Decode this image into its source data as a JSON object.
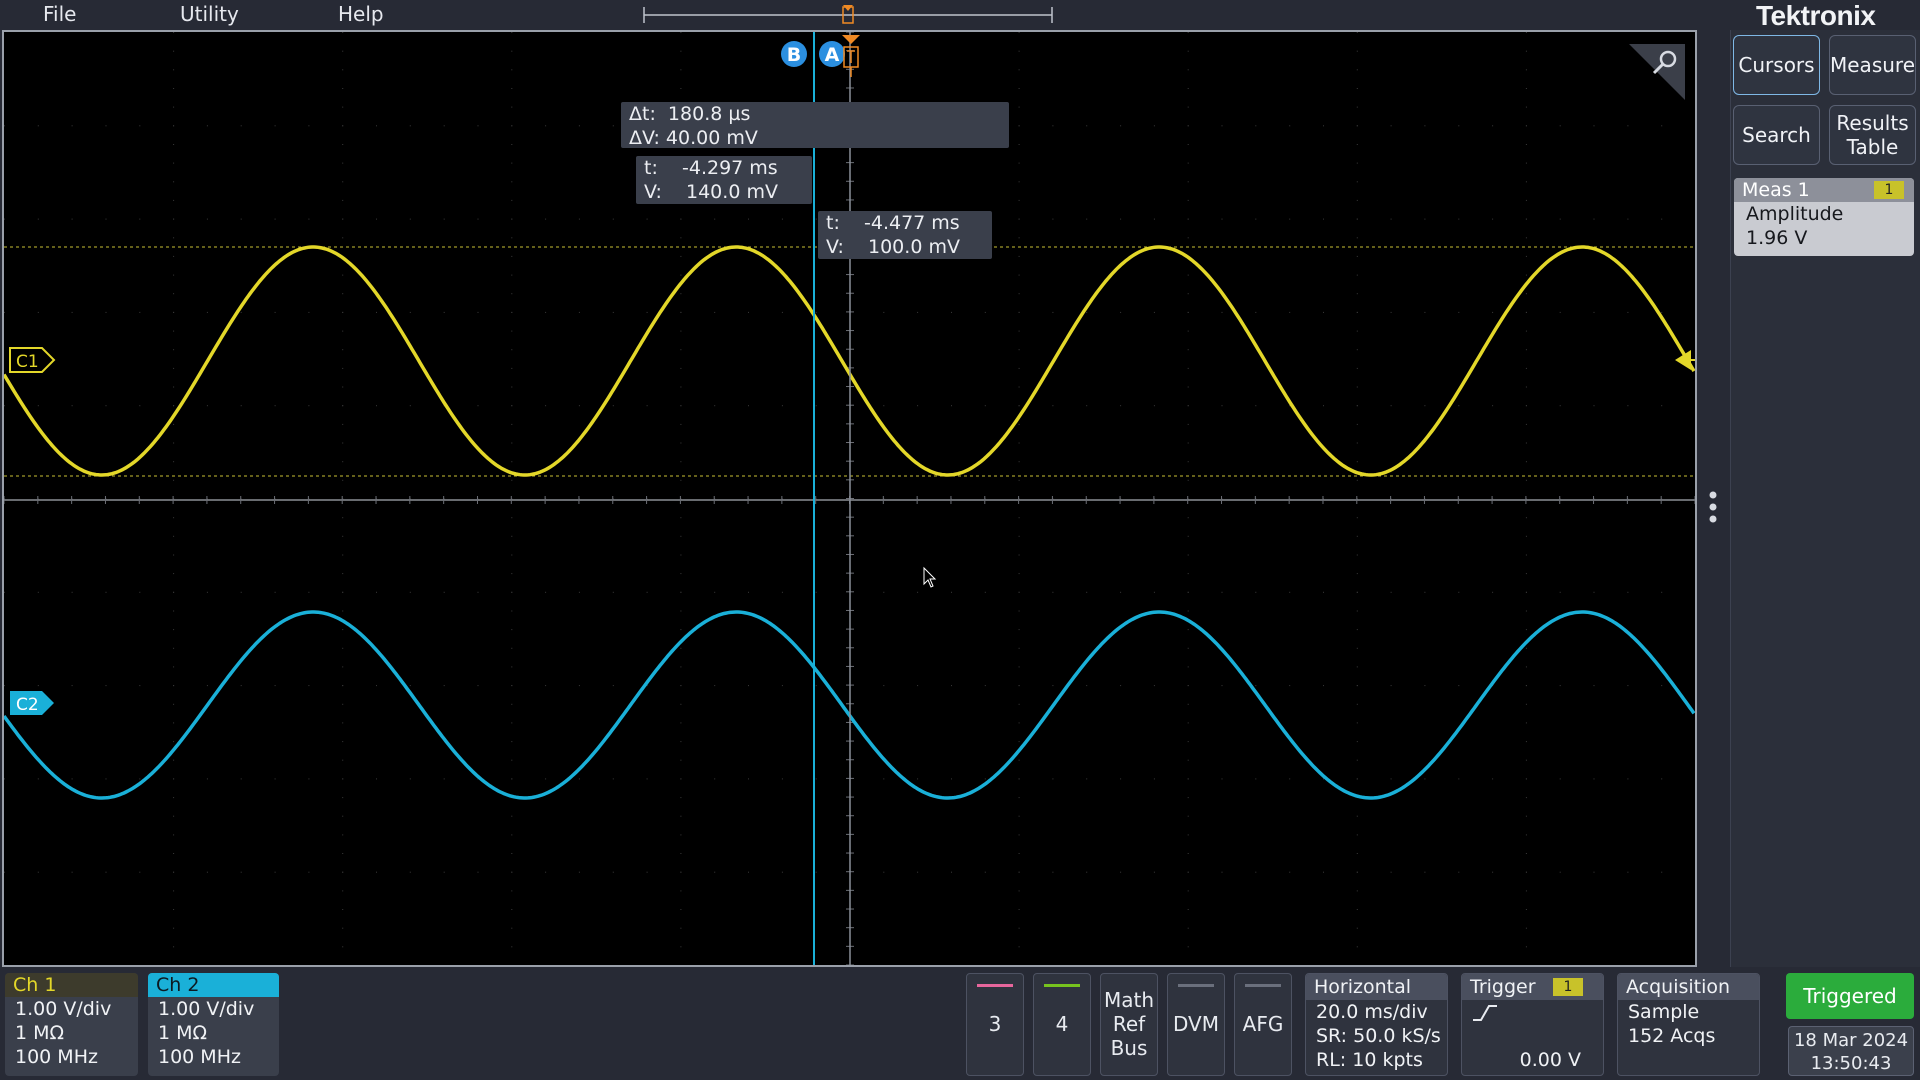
{
  "menu": {
    "file": "File",
    "utility": "Utility",
    "help": "Help"
  },
  "brand": "Tektronix",
  "colors": {
    "ch1": "#e3d729",
    "ch2": "#1ab0d8",
    "ch3": "#e7669c",
    "ch4": "#77c31e",
    "triggered": "#2bac3c",
    "cursor": "#1ab0d8"
  },
  "cursor_labels": {
    "b": "B",
    "a": "A"
  },
  "delta_readout": {
    "dt": "Δt:  180.8 µs",
    "dv": "ΔV: 40.00 mV"
  },
  "cursor_b_readout": {
    "t": "t:    -4.297 ms",
    "v": "V:    140.0 mV"
  },
  "cursor_a_readout": {
    "t": "t:    -4.477 ms",
    "v": "V:    100.0 mV"
  },
  "channel_markers": {
    "c1": "C1",
    "c2": "C2"
  },
  "side_panel": {
    "cursors": "Cursors",
    "measure": "Measure",
    "search": "Search",
    "results_table_line1": "Results",
    "results_table_line2": "Table"
  },
  "meas1": {
    "title": "Meas 1",
    "badge": "1",
    "name": "Amplitude",
    "value": "1.96 V"
  },
  "ch1": {
    "title": "Ch 1",
    "scale": "1.00 V/div",
    "impedance": "1 MΩ",
    "bandwidth": "100 MHz"
  },
  "ch2": {
    "title": "Ch 2",
    "scale": "1.00 V/div",
    "impedance": "1 MΩ",
    "bandwidth": "100 MHz"
  },
  "buttons": {
    "ch3": "3",
    "ch4": "4",
    "math1": "Math",
    "math2": "Ref",
    "math3": "Bus",
    "dvm": "DVM",
    "afg": "AFG"
  },
  "horizontal": {
    "title": "Horizontal",
    "scale": "20.0 ms/div",
    "sr": "SR: 50.0 kS/s",
    "rl": "RL: 10 kpts"
  },
  "trigger": {
    "title": "Trigger",
    "badge": "1",
    "level": "0.00 V"
  },
  "acquisition": {
    "title": "Acquisition",
    "mode": "Sample",
    "acqs": "152 Acqs"
  },
  "status": {
    "triggered": "Triggered",
    "date": "18 Mar 2024",
    "time": "13:50:43"
  }
}
